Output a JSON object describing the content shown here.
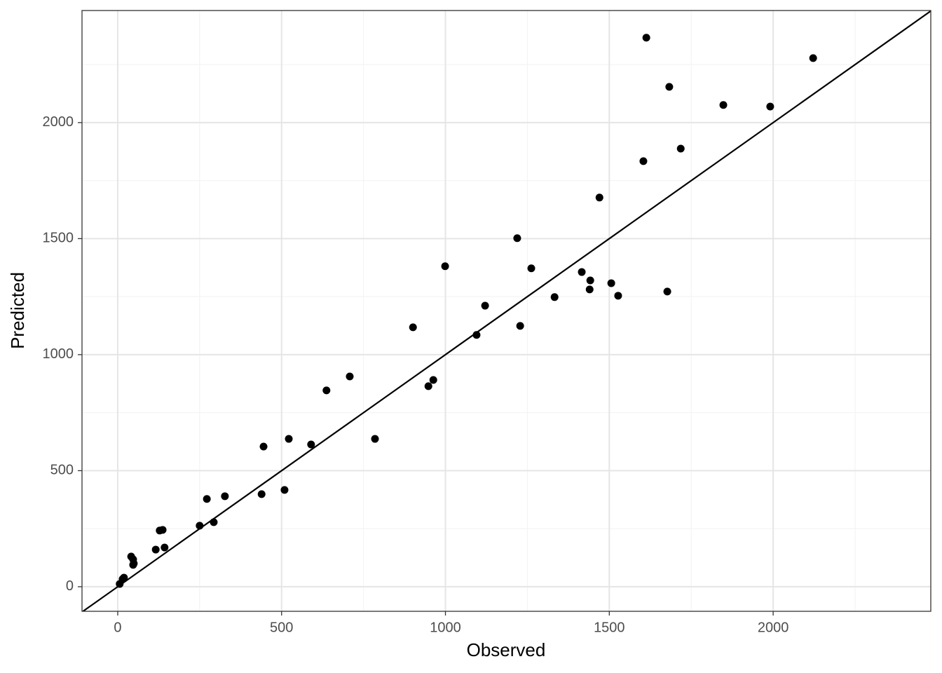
{
  "chart_data": {
    "type": "scatter",
    "x_label": "Observed",
    "y_label": "Predicted",
    "color": "#000000",
    "grid": true,
    "reference_line": {
      "slope": 1,
      "intercept": 0
    },
    "xlim": [
      -109,
      2481
    ],
    "ylim": [
      -106,
      2483
    ],
    "xticks": [
      0,
      500,
      1000,
      1500,
      2000
    ],
    "yticks": [
      0,
      500,
      1000,
      1500,
      2000
    ],
    "xminor": [
      250,
      750,
      1250,
      1750,
      2250
    ],
    "yminor": [
      250,
      750,
      1250,
      1750,
      2250
    ],
    "x": [
      1613,
      2122,
      1683,
      1848,
      1991,
      1718,
      1604,
      1470,
      1219,
      999,
      1262,
      1416,
      1442,
      1506,
      1440,
      1677,
      1527,
      1333,
      1121,
      901,
      1228,
      1095,
      708,
      963,
      948,
      637,
      522,
      785,
      590,
      445,
      327,
      272,
      439,
      509,
      293,
      250,
      137,
      128,
      143,
      116,
      41,
      47,
      49,
      47,
      19,
      15,
      6
    ],
    "values": [
      2366,
      2278,
      2154,
      2076,
      2069,
      1888,
      1834,
      1677,
      1502,
      1381,
      1372,
      1356,
      1320,
      1308,
      1281,
      1272,
      1254,
      1248,
      1211,
      1118,
      1124,
      1085,
      906,
      891,
      864,
      846,
      637,
      637,
      613,
      604,
      390,
      378,
      399,
      417,
      278,
      263,
      245,
      242,
      169,
      160,
      130,
      118,
      100,
      94,
      39,
      33,
      12
    ]
  }
}
